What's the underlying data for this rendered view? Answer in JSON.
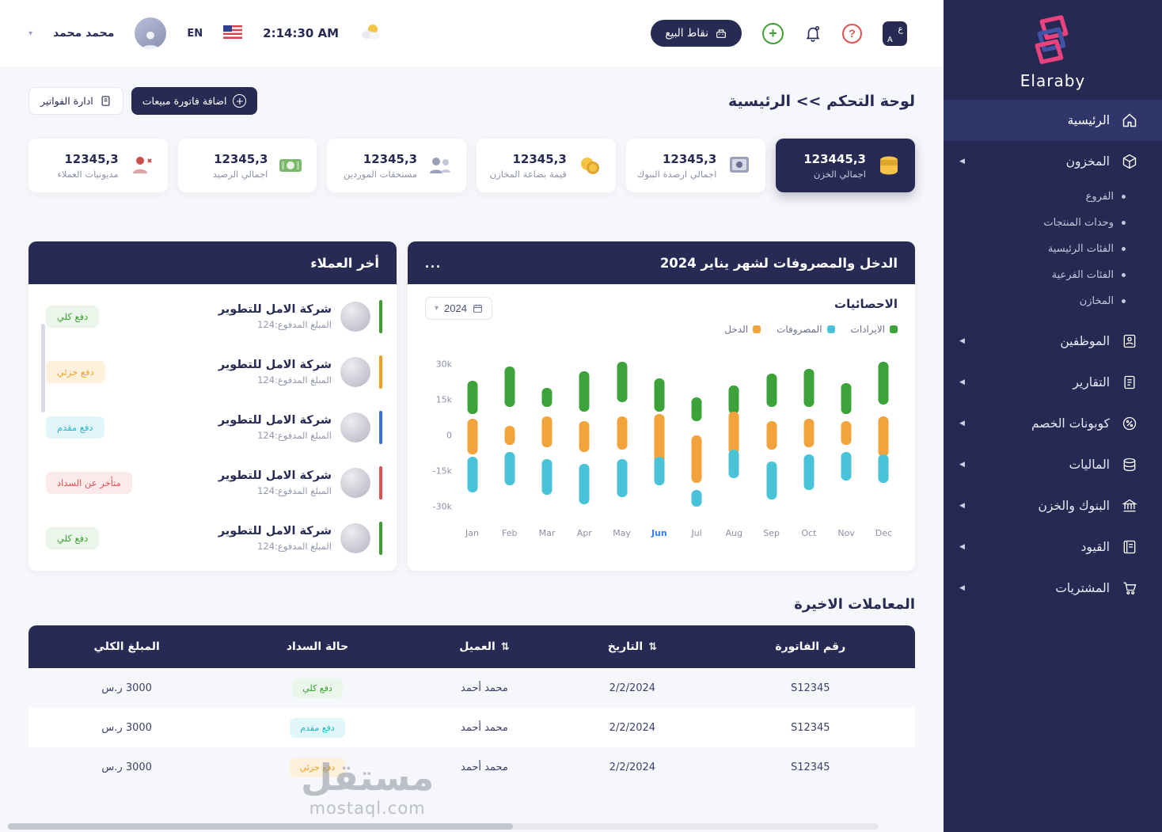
{
  "colors": {
    "navy": "#272b54",
    "green": "#3ca33b",
    "orange": "#f2a33c",
    "teal": "#49c3d8",
    "red": "#e05151",
    "sidebar": "#262a52"
  },
  "icons": {
    "caret_down": "▾",
    "nav_arrow": "◀",
    "sort": "⇅",
    "dots_menu": "...",
    "plus": "+",
    "question": "?",
    "lang_ar": "ع",
    "lang_en": "A"
  },
  "sidebar": {
    "brand": "Elaraby",
    "items": [
      {
        "label": "الرئيسية"
      },
      {
        "label": "المخزون"
      },
      {
        "label": "الموظفين"
      },
      {
        "label": "التقارير"
      },
      {
        "label": "كوبونات الخصم"
      },
      {
        "label": "الماليات"
      },
      {
        "label": "البنوك والخزن"
      },
      {
        "label": "القيود"
      },
      {
        "label": "المشتريات"
      }
    ],
    "inventory_children": [
      {
        "label": "الفروع"
      },
      {
        "label": "وحدات المنتجات"
      },
      {
        "label": "الفئات الرئيسية"
      },
      {
        "label": "الفئات الفرعية"
      },
      {
        "label": "المخازن"
      }
    ]
  },
  "topbar": {
    "user_name": "محمد محمد",
    "language": "EN",
    "time": "2:14:30 AM",
    "pos_button": "نقاط البيع"
  },
  "breadcrumb": {
    "section": "لوحة التحكم",
    "separator": ">>",
    "current": "الرئيسية"
  },
  "actions": {
    "add_invoice": "اضافة فاتورة مبيعات",
    "manage_invoices": "ادارة الفواتير"
  },
  "stats": [
    {
      "value": "123445,3",
      "label": "اجمالي الخزن"
    },
    {
      "value": "12345,3",
      "label": "اجمالي ارصدة البنوك"
    },
    {
      "value": "12345,3",
      "label": "قيمة بضاعة المخازن"
    },
    {
      "value": "12345,3",
      "label": "مستحقات الموردين"
    },
    {
      "value": "12345,3",
      "label": "اجمالي الرصيد"
    },
    {
      "value": "12345,3",
      "label": "مديونيات العملاء"
    }
  ],
  "chart": {
    "title": "الدخل والمصروفات لشهر يناير 2024",
    "stats_label": "الاحصائيات",
    "year": "2024",
    "legend": [
      {
        "label": "الايرادات",
        "color": "#3ca33b"
      },
      {
        "label": "المصروفات",
        "color": "#49c3d8"
      },
      {
        "label": "الدخل",
        "color": "#f2a33c"
      }
    ]
  },
  "chart_data": {
    "type": "bar",
    "subtype": "floating-range-columns",
    "title": "الدخل والمصروفات لشهر يناير 2024",
    "categories": [
      "Jan",
      "Feb",
      "Mar",
      "Apr",
      "May",
      "Jun",
      "Jul",
      "Aug",
      "Sep",
      "Oct",
      "Nov",
      "Dec"
    ],
    "highlight_month": "Jun",
    "y_ticks": [
      "30k",
      "15k",
      "0",
      "-15k",
      "-30k"
    ],
    "ylim": [
      -35,
      35
    ],
    "unit": "thousands",
    "series": [
      {
        "name": "الايرادات",
        "color": "#3ca33b",
        "ranges": [
          [
            9,
            23
          ],
          [
            12,
            29
          ],
          [
            12,
            20
          ],
          [
            10,
            27
          ],
          [
            14,
            31
          ],
          [
            10,
            24
          ],
          [
            6,
            16
          ],
          [
            9,
            21
          ],
          [
            12,
            26
          ],
          [
            12,
            28
          ],
          [
            9,
            22
          ],
          [
            13,
            31
          ]
        ]
      },
      {
        "name": "الدخل",
        "color": "#f2a33c",
        "ranges": [
          [
            -8,
            7
          ],
          [
            -4,
            4
          ],
          [
            -5,
            8
          ],
          [
            -7,
            6
          ],
          [
            -6,
            8
          ],
          [
            -12,
            9
          ],
          [
            -20,
            0
          ],
          [
            -8,
            10
          ],
          [
            -6,
            6
          ],
          [
            -5,
            7
          ],
          [
            -4,
            6
          ],
          [
            -9,
            8
          ]
        ]
      },
      {
        "name": "المصروفات",
        "color": "#49c3d8",
        "ranges": [
          [
            -24,
            -9
          ],
          [
            -21,
            -7
          ],
          [
            -25,
            -10
          ],
          [
            -29,
            -12
          ],
          [
            -26,
            -10
          ],
          [
            -21,
            -9
          ],
          [
            -30,
            -23
          ],
          [
            -18,
            -6
          ],
          [
            -27,
            -11
          ],
          [
            -23,
            -8
          ],
          [
            -19,
            -7
          ],
          [
            -20,
            -8
          ]
        ]
      }
    ]
  },
  "customers": {
    "title": "أخر العملاء",
    "items": [
      {
        "name": "شركة الامل للتطوير",
        "paid": "المبلغ المدفوع:124",
        "status": "دفع كلي",
        "status_type": "full"
      },
      {
        "name": "شركة الامل للتطوير",
        "paid": "المبلغ المدفوع:124",
        "status": "دفع جزئي",
        "status_type": "partial"
      },
      {
        "name": "شركة الامل للتطوير",
        "paid": "المبلغ المدفوع:124",
        "status": "دفع مقدم",
        "status_type": "advance"
      },
      {
        "name": "شركة الامل للتطوير",
        "paid": "المبلغ المدفوع:124",
        "status": "متأخر عن السداد",
        "status_type": "late"
      },
      {
        "name": "شركة الامل للتطوير",
        "paid": "المبلغ المدفوع:124",
        "status": "دفع كلي",
        "status_type": "full"
      }
    ]
  },
  "transactions": {
    "title": "المعاملات الاخيرة",
    "headers": [
      "رقم الفاتورة",
      "التاريخ",
      "العميل",
      "حالة السداد",
      "المبلغ الكلي"
    ],
    "rows": [
      {
        "invoice": "S12345",
        "date": "2/2/2024",
        "customer": "محمد أحمد",
        "status": "دفع كلي",
        "status_type": "full",
        "amount": "3000 ر.س"
      },
      {
        "invoice": "S12345",
        "date": "2/2/2024",
        "customer": "محمد أحمد",
        "status": "دفع مقدم",
        "status_type": "advance",
        "amount": "3000 ر.س"
      },
      {
        "invoice": "S12345",
        "date": "2/2/2024",
        "customer": "محمد أحمد",
        "status": "دفع جزئي",
        "status_type": "partial",
        "amount": "3000 ر.س"
      }
    ]
  },
  "watermark": {
    "line1": "مستقل",
    "line2": "mostaql.com"
  }
}
